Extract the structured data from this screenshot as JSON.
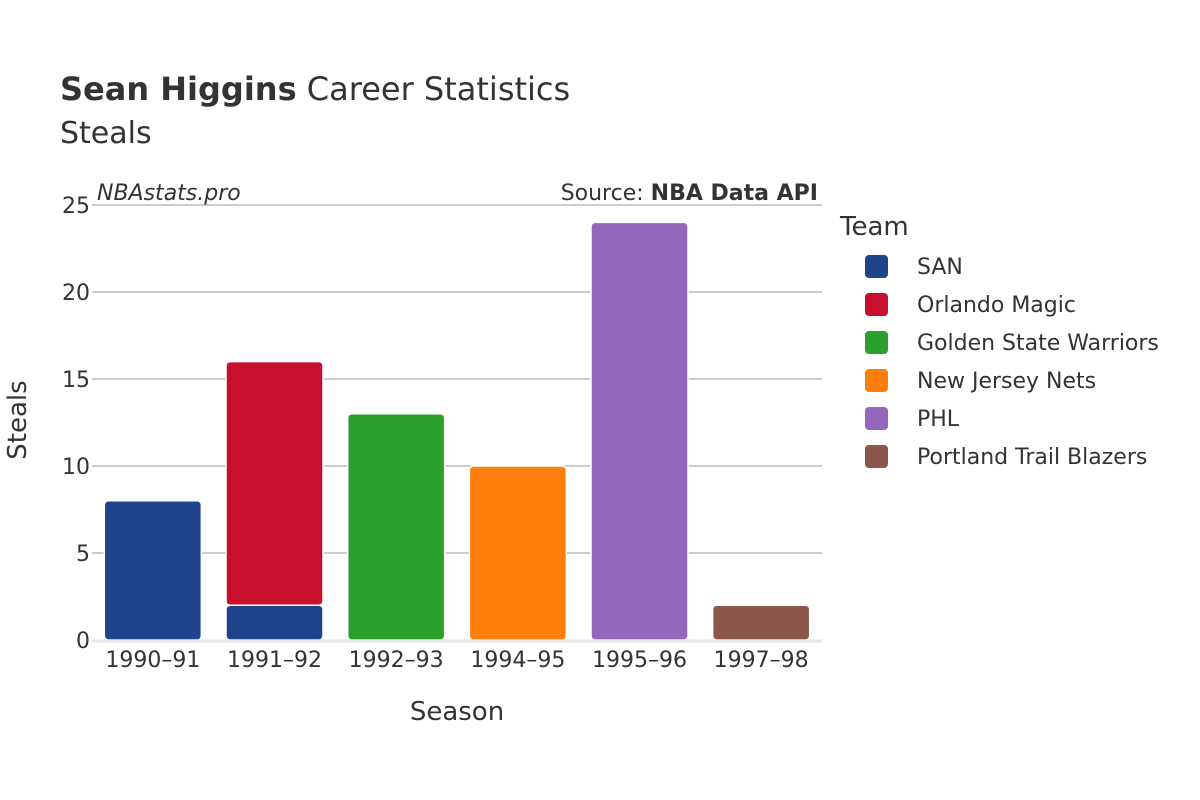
{
  "title_bold": "Sean Higgins",
  "title_rest": " Career Statistics",
  "subtitle": "Steals",
  "watermark": "NBAstats.pro",
  "source_prefix": "Source: ",
  "source_bold": "NBA Data API",
  "legend_title": "Team",
  "chart_data": {
    "type": "bar",
    "stacked": true,
    "xlabel": "Season",
    "ylabel": "Steals",
    "ylim": [
      0,
      25
    ],
    "yticks": [
      0,
      5,
      10,
      15,
      20,
      25
    ],
    "grid": true,
    "legend_position": "right",
    "categories": [
      "1990–91",
      "1991–92",
      "1992–93",
      "1994–95",
      "1995–96",
      "1997–98"
    ],
    "series": [
      {
        "name": "SAN",
        "color": "#1f448b",
        "values": [
          8,
          2,
          0,
          0,
          0,
          0
        ]
      },
      {
        "name": "Orlando Magic",
        "color": "#c8102e",
        "values": [
          0,
          14,
          0,
          0,
          0,
          0
        ]
      },
      {
        "name": "Golden State Warriors",
        "color": "#2ca02c",
        "values": [
          0,
          0,
          13,
          0,
          0,
          0
        ]
      },
      {
        "name": "New Jersey Nets",
        "color": "#ff7f0e",
        "values": [
          0,
          0,
          0,
          10,
          0,
          0
        ]
      },
      {
        "name": "PHL",
        "color": "#9467bd",
        "values": [
          0,
          0,
          0,
          0,
          24,
          0
        ]
      },
      {
        "name": "Portland Trail Blazers",
        "color": "#8c564b",
        "values": [
          0,
          0,
          0,
          0,
          0,
          2
        ]
      }
    ]
  }
}
